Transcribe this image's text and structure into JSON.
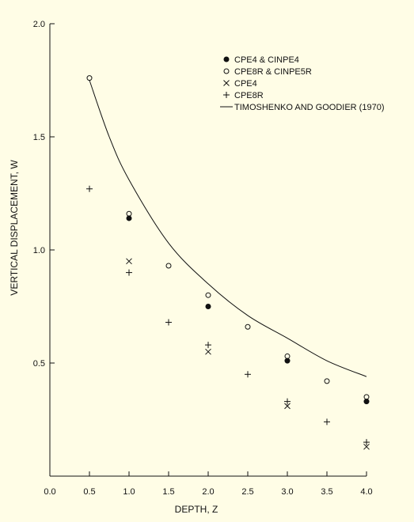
{
  "chart_data": {
    "type": "scatter",
    "xlabel": "DEPTH, Z",
    "ylabel": "VERTICAL DISPLACEMENT, W",
    "xlim": [
      0.0,
      4.0
    ],
    "ylim": [
      0.0,
      2.0
    ],
    "x_ticks": [
      "0.0",
      "0.5",
      "1.0",
      "1.5",
      "2.0",
      "2.5",
      "3.0",
      "3.5",
      "4.0"
    ],
    "y_ticks": [
      "0.5",
      "1.0",
      "1.5",
      "2.0"
    ],
    "legend_position": "top-right",
    "series": [
      {
        "name": "CPE4 & CINPE4",
        "marker": "filled-circle",
        "points": [
          [
            1.0,
            1.14
          ],
          [
            2.0,
            0.75
          ],
          [
            3.0,
            0.51
          ],
          [
            4.0,
            0.33
          ]
        ]
      },
      {
        "name": "CPE8R & CINPE5R",
        "marker": "open-circle",
        "points": [
          [
            0.5,
            1.76
          ],
          [
            1.0,
            1.16
          ],
          [
            1.5,
            0.93
          ],
          [
            2.0,
            0.8
          ],
          [
            2.5,
            0.66
          ],
          [
            3.0,
            0.53
          ],
          [
            3.5,
            0.42
          ],
          [
            4.0,
            0.35
          ]
        ]
      },
      {
        "name": "CPE4",
        "marker": "x",
        "points": [
          [
            1.0,
            0.95
          ],
          [
            2.0,
            0.55
          ],
          [
            3.0,
            0.31
          ],
          [
            4.0,
            0.13
          ]
        ]
      },
      {
        "name": "CPE8R",
        "marker": "plus",
        "points": [
          [
            0.5,
            1.27
          ],
          [
            1.0,
            0.9
          ],
          [
            1.5,
            0.68
          ],
          [
            2.0,
            0.58
          ],
          [
            2.5,
            0.45
          ],
          [
            3.0,
            0.33
          ],
          [
            3.5,
            0.24
          ],
          [
            4.0,
            0.15
          ]
        ]
      },
      {
        "name": "TIMOSHENKO AND GOODIER (1970)",
        "marker": "line",
        "points": [
          [
            0.5,
            1.75
          ],
          [
            0.75,
            1.5
          ],
          [
            1.0,
            1.31
          ],
          [
            1.5,
            1.03
          ],
          [
            2.0,
            0.85
          ],
          [
            2.5,
            0.71
          ],
          [
            3.0,
            0.61
          ],
          [
            3.5,
            0.51
          ],
          [
            4.0,
            0.44
          ]
        ]
      }
    ]
  }
}
